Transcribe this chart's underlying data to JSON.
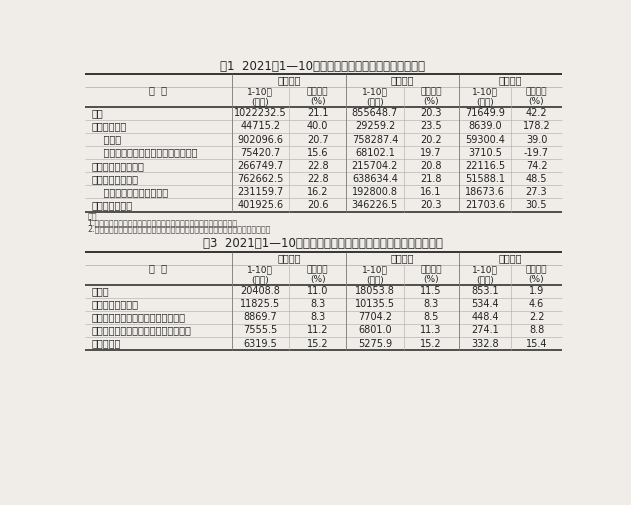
{
  "table1_title": "表1  2021年1—10月份规模以上工业企业主要财务指标",
  "table3_title": "表3  2021年1—10月份规模以上工业企业主要财务指标（分行业）",
  "table1_data": [
    [
      "总计",
      "1022232.5",
      "21.1",
      "855648.7",
      "20.3",
      "71649.9",
      "42.2"
    ],
    [
      "其中：采矿业",
      "44715.2",
      "40.0",
      "29259.2",
      "23.5",
      "8639.0",
      "178.2"
    ],
    [
      "    制造业",
      "902096.6",
      "20.7",
      "758287.4",
      "20.2",
      "59300.4",
      "39.0"
    ],
    [
      "    电力、热力、燃气及水生产和供应业",
      "75420.7",
      "15.6",
      "68102.1",
      "19.7",
      "3710.5",
      "-19.7"
    ],
    [
      "其中：国有控股企业",
      "266749.7",
      "22.8",
      "215704.2",
      "20.8",
      "22116.5",
      "74.2"
    ],
    [
      "其中：股份制企业",
      "762662.5",
      "22.8",
      "638634.4",
      "21.8",
      "51588.1",
      "48.5"
    ],
    [
      "    外商及港澳台商投资企业",
      "231159.7",
      "16.2",
      "192800.8",
      "16.1",
      "18673.6",
      "27.3"
    ],
    [
      "其中：私营企业",
      "401925.6",
      "20.6",
      "346226.5",
      "20.3",
      "21703.6",
      "30.5"
    ]
  ],
  "table1_notes": [
    "注：",
    "1.经济类型分组之间存在交叉，故各经济类型企业数据之和大于总计。",
    "2.本表部分指标存在总计不等于分项之和情况，是数据四舍五入所致，未作机械调整。"
  ],
  "table3_data": [
    [
      "纺织业",
      "20408.8",
      "11.0",
      "18053.8",
      "11.5",
      "853.1",
      "1.9"
    ],
    [
      "纺织服装、服饰业",
      "11825.5",
      "8.3",
      "10135.5",
      "8.3",
      "534.4",
      "4.6"
    ],
    [
      "皮革、毛皮、羽毛及其制品和制鞋业",
      "8869.7",
      "8.3",
      "7704.2",
      "8.5",
      "448.4",
      "2.2"
    ],
    [
      "木材加工和木、竹、藤、棕、草制品业",
      "7555.5",
      "11.2",
      "6801.0",
      "11.3",
      "274.1",
      "8.8"
    ],
    [
      "家具制造业",
      "6319.5",
      "15.2",
      "5275.9",
      "15.2",
      "332.8",
      "15.4"
    ]
  ],
  "groups1": [
    "营业收入",
    "营业成本",
    "利润总额"
  ],
  "groups3": [
    "营业收入",
    "营业成本",
    "利润总额"
  ],
  "sub_labels": [
    "1-10月\n(亿元)",
    "同比增长\n(%)",
    "1-10月\n(亿元)",
    "同比增长\n(%)",
    "1-10月\n(亿元)",
    "同比增长\n(%)"
  ],
  "header1_label": "分  组",
  "header3_label": "行  业",
  "bg_color": "#f0ede8",
  "line_color_thick": "#333333",
  "line_color_mid": "#777777",
  "line_color_thin": "#aaaaaa",
  "text_color": "#222222",
  "note_color": "#444444",
  "font_size": 7.0,
  "title_font_size": 8.5,
  "note_font_size": 5.8
}
